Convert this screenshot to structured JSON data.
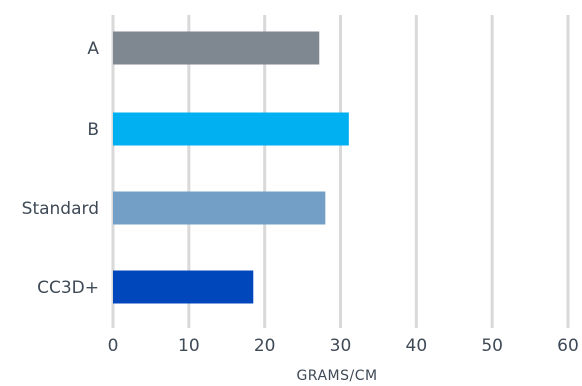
{
  "chart_data": {
    "type": "bar",
    "orientation": "horizontal",
    "categories": [
      "A",
      "B",
      "Standard",
      "CC3D+"
    ],
    "values": [
      27.2,
      31.1,
      28.0,
      18.5
    ],
    "colors": [
      "#7f8790",
      "#00b0f0",
      "#739fc6",
      "#0047bb"
    ],
    "xlabel": "GRAMS/CM",
    "ylabel": "",
    "xlim": [
      0,
      60
    ],
    "ticks": [
      0,
      10,
      20,
      30,
      40,
      50,
      60
    ],
    "grid": "vertical"
  }
}
